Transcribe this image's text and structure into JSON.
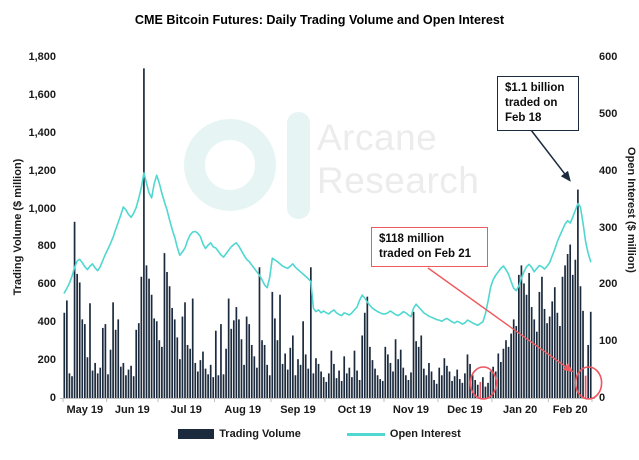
{
  "title": "CME Bitcoin Futures: Daily Trading Volume and Open Interest",
  "watermark": {
    "line1": "Arcane",
    "line2": "Research"
  },
  "left_axis": {
    "label": "Trading Volume ($ million)",
    "ticks": [
      "0",
      "200",
      "400",
      "600",
      "800",
      "1,000",
      "1,200",
      "1,400",
      "1,600",
      "1,800"
    ]
  },
  "right_axis": {
    "label": "Open Interest ($ million)",
    "ticks": [
      "0",
      "100",
      "200",
      "300",
      "400",
      "500",
      "600"
    ]
  },
  "legend": {
    "volume_label": "Trading Volume",
    "open_interest_label": "Open Interest"
  },
  "annotations": [
    {
      "id": "feb18",
      "lines": [
        "$1.1 billion",
        "traded on",
        "Feb 18"
      ],
      "style": "dark"
    },
    {
      "id": "feb21",
      "lines": [
        "$118 million",
        "traded on Feb 21"
      ],
      "style": "red"
    }
  ],
  "colors": {
    "bar": "#1b2a3c",
    "line": "#4fd7d0",
    "highlight": "#ef5560",
    "axis": "#bfbfbf",
    "annotation_dark": "#1c2b3d",
    "annotation_red": "#ee5a5e",
    "watermark_logo": "#e6f5f4",
    "watermark_text": "#ececec"
  },
  "chart_data": {
    "type": "bar+line combo, daily",
    "title": "CME Bitcoin Futures: Daily Trading Volume and Open Interest",
    "left_ylabel": "Trading Volume ($ million)",
    "right_ylabel": "Open Interest ($ million)",
    "left_ylim": [
      0,
      1800
    ],
    "right_ylim": [
      0,
      600
    ],
    "grid": false,
    "legend_position": "bottom-center",
    "months": [
      {
        "label": "May 19",
        "days": 17
      },
      {
        "label": "Jun 19",
        "days": 20
      },
      {
        "label": "Jul 19",
        "days": 22
      },
      {
        "label": "Aug 19",
        "days": 22
      },
      {
        "label": "Sep 19",
        "days": 21
      },
      {
        "label": "Oct 19",
        "days": 23
      },
      {
        "label": "Nov 19",
        "days": 21
      },
      {
        "label": "Dec 19",
        "days": 21
      },
      {
        "label": "Jan 20",
        "days": 22
      },
      {
        "label": "Feb 20",
        "days": 17
      }
    ],
    "series": [
      {
        "name": "Trading Volume",
        "type": "bar",
        "axis": "left",
        "unit": "$ million",
        "values": [
          450,
          515,
          130,
          115,
          930,
          655,
          610,
          415,
          390,
          215,
          500,
          145,
          185,
          130,
          160,
          370,
          390,
          125,
          255,
          505,
          360,
          415,
          165,
          185,
          120,
          150,
          170,
          115,
          360,
          395,
          640,
          1740,
          700,
          630,
          545,
          420,
          405,
          305,
          270,
          765,
          665,
          590,
          475,
          415,
          320,
          205,
          430,
          505,
          280,
          260,
          525,
          185,
          140,
          200,
          245,
          155,
          125,
          175,
          110,
          355,
          120,
          390,
          125,
          260,
          525,
          365,
          410,
          480,
          415,
          310,
          175,
          430,
          390,
          280,
          220,
          160,
          690,
          305,
          280,
          175,
          120,
          560,
          420,
          305,
          545,
          180,
          235,
          150,
          265,
          330,
          120,
          205,
          175,
          405,
          230,
          155,
          690,
          130,
          210,
          180,
          140,
          110,
          85,
          130,
          250,
          180,
          105,
          145,
          90,
          220,
          130,
          160,
          110,
          250,
          145,
          95,
          330,
          450,
          535,
          270,
          200,
          155,
          120,
          100,
          90,
          270,
          230,
          185,
          140,
          310,
          205,
          255,
          160,
          120,
          95,
          135,
          455,
          300,
          270,
          330,
          155,
          120,
          185,
          140,
          95,
          75,
          160,
          120,
          210,
          170,
          140,
          90,
          115,
          150,
          100,
          80,
          130,
          230,
          180,
          120,
          95,
          70,
          85,
          110,
          60,
          80,
          140,
          165,
          140,
          235,
          190,
          260,
          305,
          270,
          340,
          415,
          380,
          650,
          700,
          605,
          545,
          660,
          480,
          415,
          350,
          560,
          640,
          470,
          395,
          430,
          510,
          585,
          450,
          380,
          640,
          700,
          760,
          810,
          650,
          730,
          1100,
          590,
          460,
          118,
          280,
          455
        ]
      },
      {
        "name": "Open Interest",
        "type": "line",
        "axis": "right",
        "unit": "$ million",
        "values": [
          185,
          193,
          202,
          214,
          230,
          241,
          244,
          238,
          231,
          226,
          232,
          236,
          229,
          224,
          231,
          242,
          253,
          262,
          272,
          283,
          296,
          309,
          322,
          336,
          331,
          323,
          318,
          325,
          335,
          352,
          370,
          396,
          378,
          361,
          352,
          377,
          392,
          378,
          360,
          345,
          331,
          313,
          297,
          283,
          265,
          251,
          257,
          264,
          277,
          287,
          292,
          293,
          290,
          284,
          271,
          263,
          269,
          273,
          266,
          264,
          258,
          252,
          248,
          254,
          260,
          266,
          270,
          273,
          267,
          259,
          251,
          244,
          240,
          234,
          228,
          222,
          216,
          208,
          199,
          194,
          212,
          246,
          243,
          240,
          236,
          232,
          230,
          228,
          232,
          236,
          230,
          226,
          222,
          218,
          214,
          210,
          205,
          158,
          152,
          155,
          150,
          153,
          150,
          148,
          152,
          155,
          150,
          147,
          145,
          150,
          148,
          146,
          150,
          155,
          160,
          172,
          181,
          176,
          169,
          163,
          158,
          155,
          152,
          150,
          148,
          148,
          150,
          153,
          150,
          147,
          145,
          148,
          152,
          150,
          146,
          143,
          158,
          165,
          160,
          155,
          150,
          147,
          144,
          142,
          140,
          138,
          137,
          135,
          138,
          140,
          137,
          134,
          132,
          135,
          133,
          130,
          132,
          137,
          135,
          132,
          130,
          128,
          131,
          134,
          148,
          170,
          195,
          208,
          216,
          222,
          228,
          232,
          226,
          218,
          205,
          193,
          189,
          197,
          211,
          222,
          231,
          235,
          230,
          222,
          228,
          233,
          231,
          227,
          232,
          238,
          250,
          262,
          275,
          286,
          296,
          306,
          312,
          308,
          318,
          330,
          342,
          336,
          308,
          275,
          255,
          240
        ]
      }
    ],
    "highlighted_days": [
      {
        "index": 162,
        "value": 85,
        "note": "circled low-volume day, late Dec 19"
      },
      {
        "index": 203,
        "value": 118,
        "note": "$118 million traded on Feb 21"
      }
    ],
    "callouts": [
      {
        "bar_index": 200,
        "value": 1100,
        "text": "$1.1 billion traded on Feb 18"
      },
      {
        "bar_index": 203,
        "value": 118,
        "text": "$118 million traded on Feb 21"
      }
    ]
  }
}
